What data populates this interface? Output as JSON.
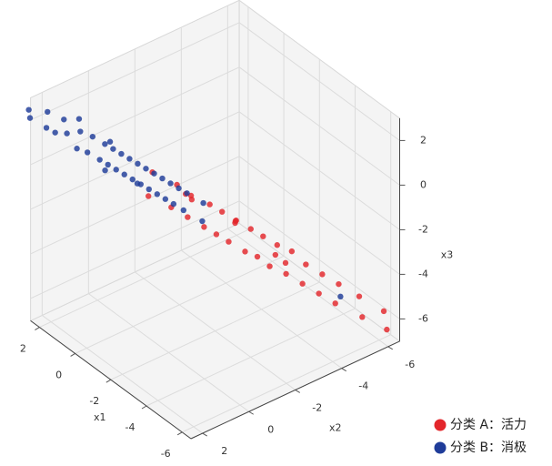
{
  "chart_data": {
    "type": "scatter3d",
    "xlabel": "x1",
    "ylabel": "x2",
    "zlabel": "x3",
    "xlim": [
      -6.5,
      2.5
    ],
    "ylim": [
      -6.5,
      2.5
    ],
    "zlim": [
      -7,
      3
    ],
    "xticks": [
      -6,
      -4,
      -2,
      0,
      2
    ],
    "yticks": [
      -6,
      -4,
      -2,
      0,
      2
    ],
    "zticks": [
      -6,
      -4,
      -2,
      0,
      2
    ],
    "grid": true,
    "legend": "lower right",
    "series": [
      {
        "name": "分类 A：活力",
        "color": "#e3262b",
        "x": [
          -0.3,
          -0.6,
          -0.9,
          -1.1,
          -1.3,
          -1.5,
          -1.7,
          -1.9,
          -2.0,
          -2.2,
          -2.4,
          -2.5,
          -2.7,
          -2.9,
          -3.0,
          -3.2,
          -3.4,
          -3.5,
          -3.7,
          -3.9,
          -4.1,
          -4.3,
          -4.5,
          -4.7,
          -4.9,
          -5.1,
          -5.4,
          -5.7,
          -6.0,
          -6.3,
          -1.6,
          -2.6,
          -3.3,
          -4.0,
          -1.0,
          -2.1
        ],
        "y": [
          -0.6,
          -0.2,
          -1.2,
          -0.8,
          -1.5,
          -1.2,
          -2.0,
          -1.6,
          -2.3,
          -1.9,
          -2.6,
          -2.2,
          -3.0,
          -2.6,
          -3.3,
          -2.9,
          -3.6,
          -3.2,
          -4.0,
          -3.6,
          -4.3,
          -4.0,
          -4.7,
          -4.4,
          -5.1,
          -4.8,
          -5.6,
          -5.5,
          -6.2,
          -6.1,
          -1.3,
          -2.4,
          -3.6,
          -3.5,
          -1.5,
          -2.8
        ],
        "z": [
          -0.2,
          -0.9,
          -0.7,
          -1.4,
          -1.1,
          -1.8,
          -1.5,
          -2.2,
          -1.8,
          -2.5,
          -2.1,
          -2.8,
          -2.5,
          -3.2,
          -2.8,
          -3.4,
          -3.1,
          -3.8,
          -3.4,
          -4.1,
          -3.9,
          -4.5,
          -4.3,
          -4.9,
          -4.7,
          -5.3,
          -5.2,
          -5.9,
          -5.8,
          -6.4,
          -1.0,
          -2.0,
          -3.6,
          -3.5,
          -1.2,
          -2.4
        ]
      },
      {
        "name": "分类 B：消极",
        "color": "#1f3c99",
        "x": [
          2.6,
          2.4,
          2.2,
          2.0,
          1.8,
          1.9,
          1.5,
          1.4,
          1.2,
          1.1,
          1.0,
          0.8,
          0.7,
          0.6,
          0.5,
          0.4,
          0.3,
          0.2,
          0.1,
          0.0,
          -0.1,
          -0.2,
          -0.3,
          -0.4,
          -0.5,
          -0.6,
          -0.7,
          -0.8,
          -0.9,
          -1.0,
          -1.1,
          -1.2,
          -1.4,
          -1.6,
          -1.8,
          0.9,
          1.6,
          -0.5,
          0.4,
          -5.0
        ],
        "y": [
          2.5,
          2.6,
          2.0,
          2.2,
          1.6,
          1.9,
          1.7,
          1.2,
          1.5,
          0.9,
          1.2,
          0.6,
          0.9,
          0.4,
          0.7,
          0.2,
          0.5,
          0.0,
          0.3,
          -0.2,
          0.1,
          -0.4,
          -0.1,
          -0.6,
          -0.3,
          -0.8,
          -0.5,
          -1.0,
          -0.7,
          -1.2,
          -0.9,
          -1.4,
          -1.1,
          -1.8,
          -1.6,
          0.3,
          1.1,
          0.2,
          0.9,
          -5.1
        ],
        "z": [
          2.4,
          2.2,
          2.3,
          1.8,
          2.0,
          1.5,
          1.6,
          1.5,
          1.0,
          1.3,
          0.8,
          1.0,
          0.5,
          0.8,
          0.3,
          0.6,
          0.1,
          0.4,
          -0.1,
          0.2,
          -0.3,
          0.0,
          -0.5,
          -0.2,
          -0.7,
          -0.4,
          -0.9,
          -0.6,
          -1.1,
          -0.8,
          -1.3,
          -1.0,
          -1.5,
          -1.4,
          -2.0,
          0.9,
          1.9,
          -0.2,
          0.2,
          -5.2
        ]
      }
    ]
  }
}
